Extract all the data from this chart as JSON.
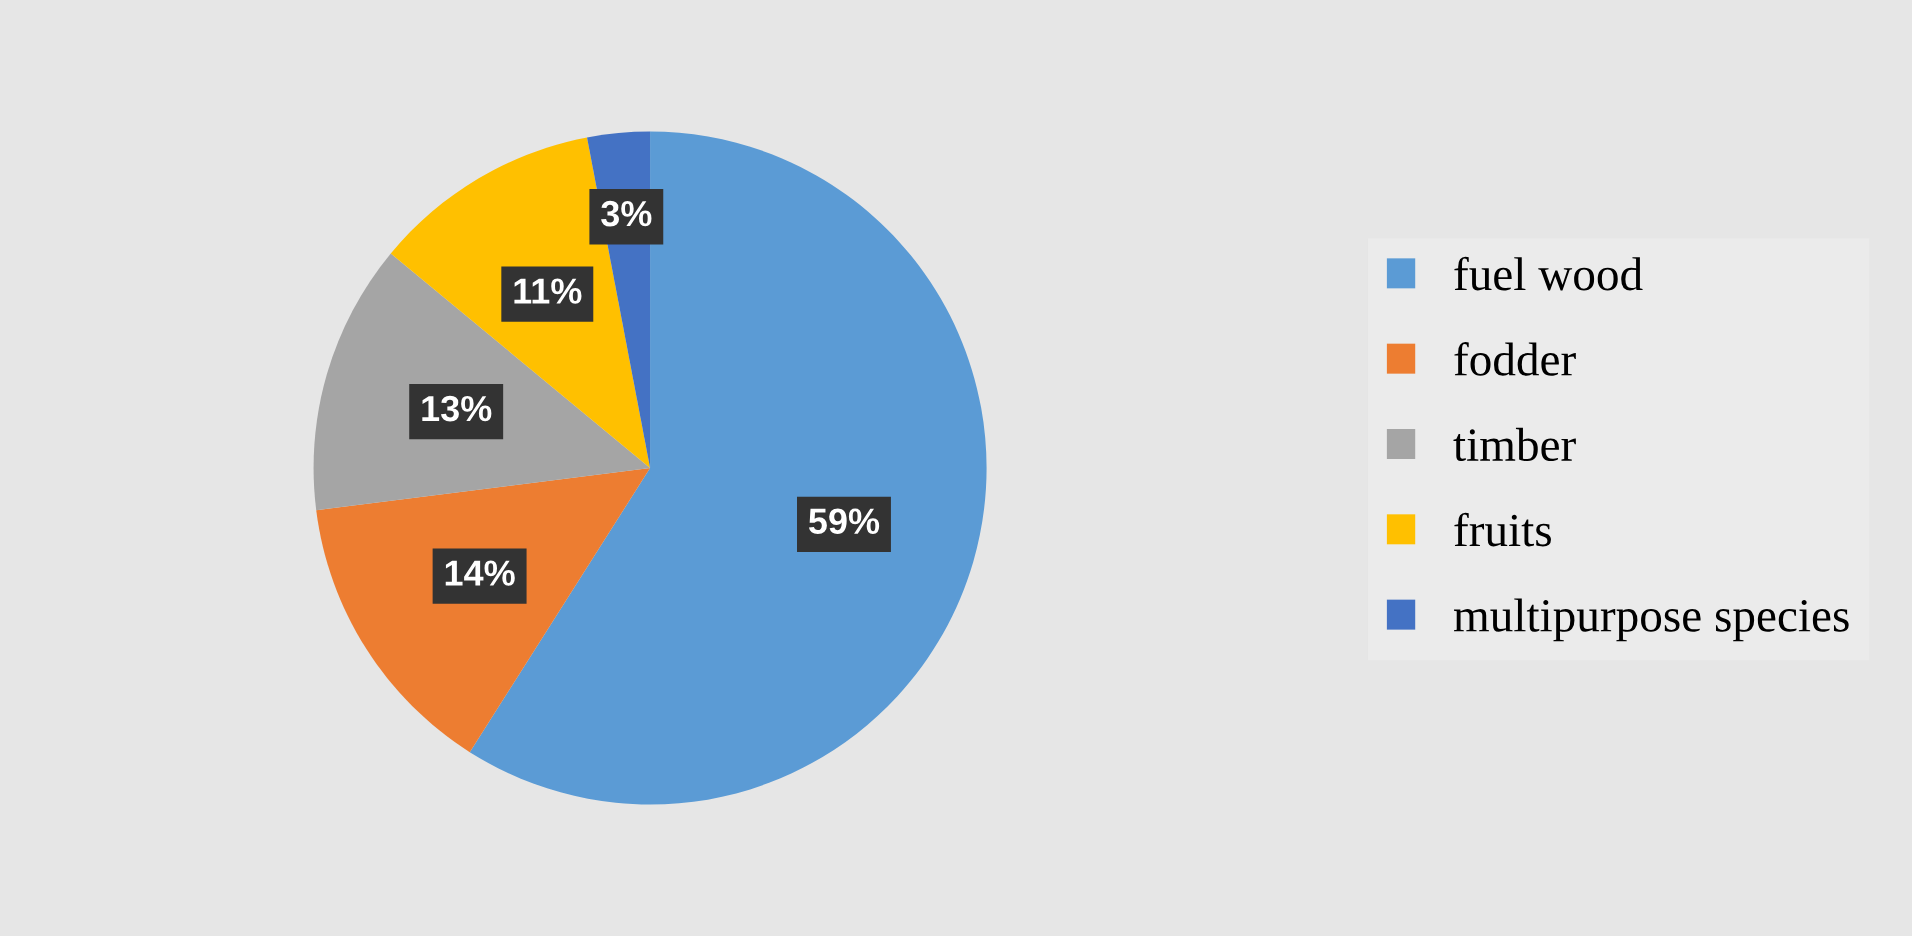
{
  "chart_data": {
    "type": "pie",
    "categories": [
      "fuel wood",
      "fodder",
      "timber",
      "fruits",
      "multipurpose species"
    ],
    "values": [
      59,
      14,
      13,
      11,
      3
    ],
    "colors": [
      "#5b9bd5",
      "#ed7d31",
      "#a5a5a5",
      "#ffc000",
      "#4472c4"
    ],
    "value_labels": [
      "59%",
      "14%",
      "13%",
      "11%",
      "3%"
    ],
    "legend": "right"
  }
}
